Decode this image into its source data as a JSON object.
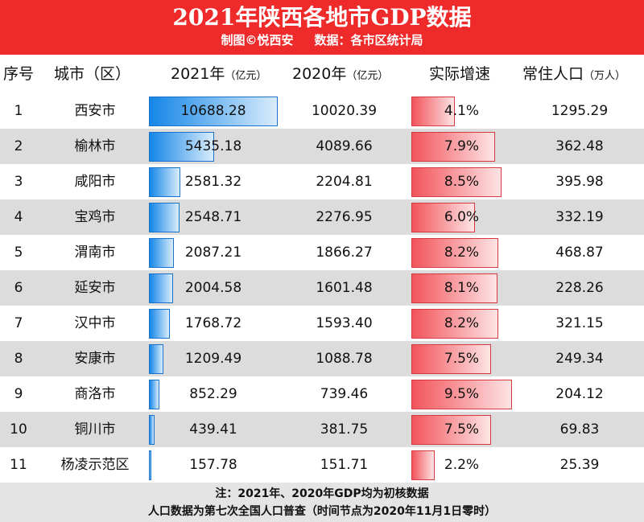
{
  "header": {
    "title": "2021年陕西各地市GDP数据",
    "subtitle": "制图©悦西安     数据：各市区统计局"
  },
  "columns": {
    "index": "序号",
    "city": "城市（区）",
    "gdp2021": "2021年",
    "gdp2020": "2020年",
    "unit": "（亿元）",
    "growth": "实际增速",
    "population": "常住人口",
    "pop_unit": "（万人）"
  },
  "colors": {
    "header_bg": "#ee2a2a",
    "gdp_bar": "#1486e8",
    "growth_bar": "#f2545b",
    "row_alt": "#dcdcdc"
  },
  "chart_data": {
    "type": "table",
    "rows": [
      {
        "rank": "1",
        "city": "西安市",
        "gdp2021": "10688.28",
        "gdp2020": "10020.39",
        "growth": "4.1%",
        "population": "1295.29"
      },
      {
        "rank": "2",
        "city": "榆林市",
        "gdp2021": "5435.18",
        "gdp2020": "4089.66",
        "growth": "7.9%",
        "population": "362.48"
      },
      {
        "rank": "3",
        "city": "咸阳市",
        "gdp2021": "2581.32",
        "gdp2020": "2204.81",
        "growth": "8.5%",
        "population": "395.98"
      },
      {
        "rank": "4",
        "city": "宝鸡市",
        "gdp2021": "2548.71",
        "gdp2020": "2276.95",
        "growth": "6.0%",
        "population": "332.19"
      },
      {
        "rank": "5",
        "city": "渭南市",
        "gdp2021": "2087.21",
        "gdp2020": "1866.27",
        "growth": "8.2%",
        "population": "468.87"
      },
      {
        "rank": "6",
        "city": "延安市",
        "gdp2021": "2004.58",
        "gdp2020": "1601.48",
        "growth": "8.1%",
        "population": "228.26"
      },
      {
        "rank": "7",
        "city": "汉中市",
        "gdp2021": "1768.72",
        "gdp2020": "1593.40",
        "growth": "8.2%",
        "population": "321.15"
      },
      {
        "rank": "8",
        "city": "安康市",
        "gdp2021": "1209.49",
        "gdp2020": "1088.78",
        "growth": "7.5%",
        "population": "249.34"
      },
      {
        "rank": "9",
        "city": "商洛市",
        "gdp2021": "852.29",
        "gdp2020": "739.46",
        "growth": "9.5%",
        "population": "204.12"
      },
      {
        "rank": "10",
        "city": "铜川市",
        "gdp2021": "439.41",
        "gdp2020": "381.75",
        "growth": "7.5%",
        "population": "69.83"
      },
      {
        "rank": "11",
        "city": "杨凌示范区",
        "gdp2021": "157.78",
        "gdp2020": "151.71",
        "growth": "2.2%",
        "population": "25.39"
      }
    ]
  },
  "footer": {
    "note1": "注：2021年、2020年GDP均为初核数据",
    "note2": "人口数据为第七次全国人口普查（时间节点为2020年11月1日零时）"
  }
}
